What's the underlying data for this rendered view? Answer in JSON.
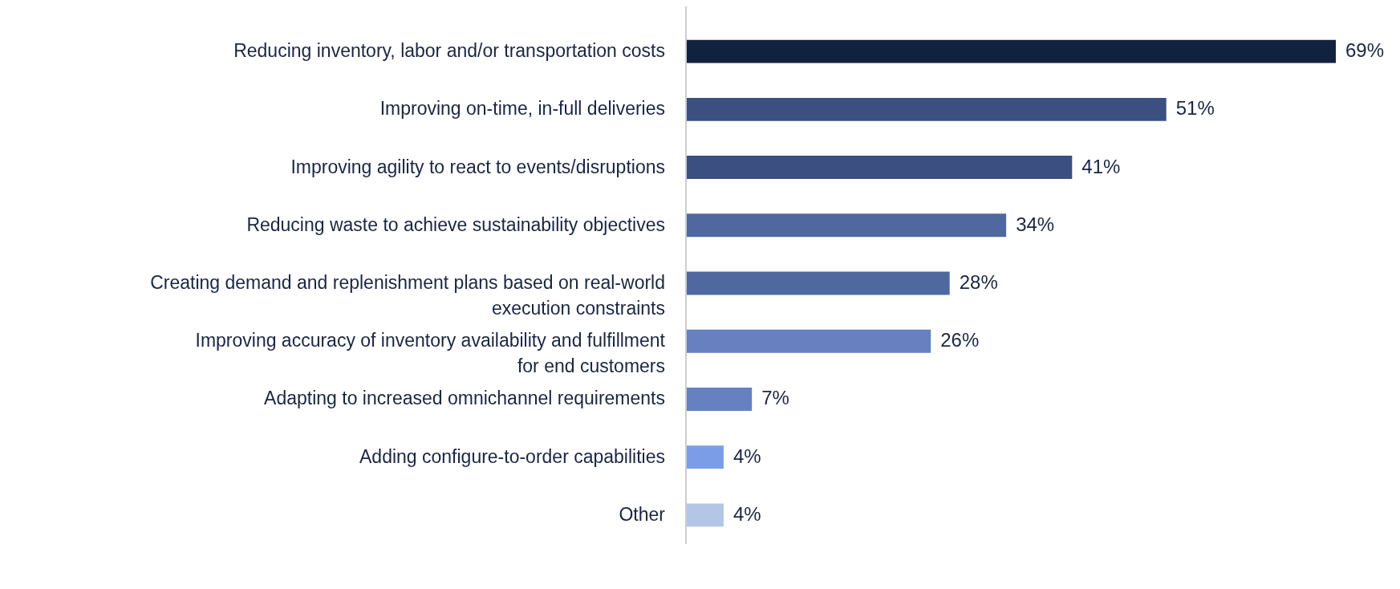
{
  "chart_data": {
    "type": "bar",
    "orientation": "horizontal",
    "categories": [
      "Reducing inventory, labor and/or transportation costs",
      "Improving on-time, in-full deliveries",
      "Improving agility to react to events/disruptions",
      "Reducing waste to achieve sustainability objectives",
      "Creating demand and replenishment plans based on real-world execution constraints",
      "Improving accuracy of inventory availability and fulfillment for end customers",
      "Adapting to increased omnichannel requirements",
      "Adding configure-to-order capabilities",
      "Other"
    ],
    "values": [
      69,
      51,
      41,
      34,
      28,
      26,
      7,
      4,
      4
    ],
    "colors": [
      "#11223f",
      "#3b5080",
      "#3b5080",
      "#4f69a0",
      "#4f69a0",
      "#6680c0",
      "#6680c0",
      "#7b9de8",
      "#b3c6e6"
    ],
    "value_labels": [
      "69%",
      "51%",
      "41%",
      "34%",
      "28%",
      "26%",
      "7%",
      "4%",
      "4%"
    ],
    "legend": false,
    "grid": false
  }
}
